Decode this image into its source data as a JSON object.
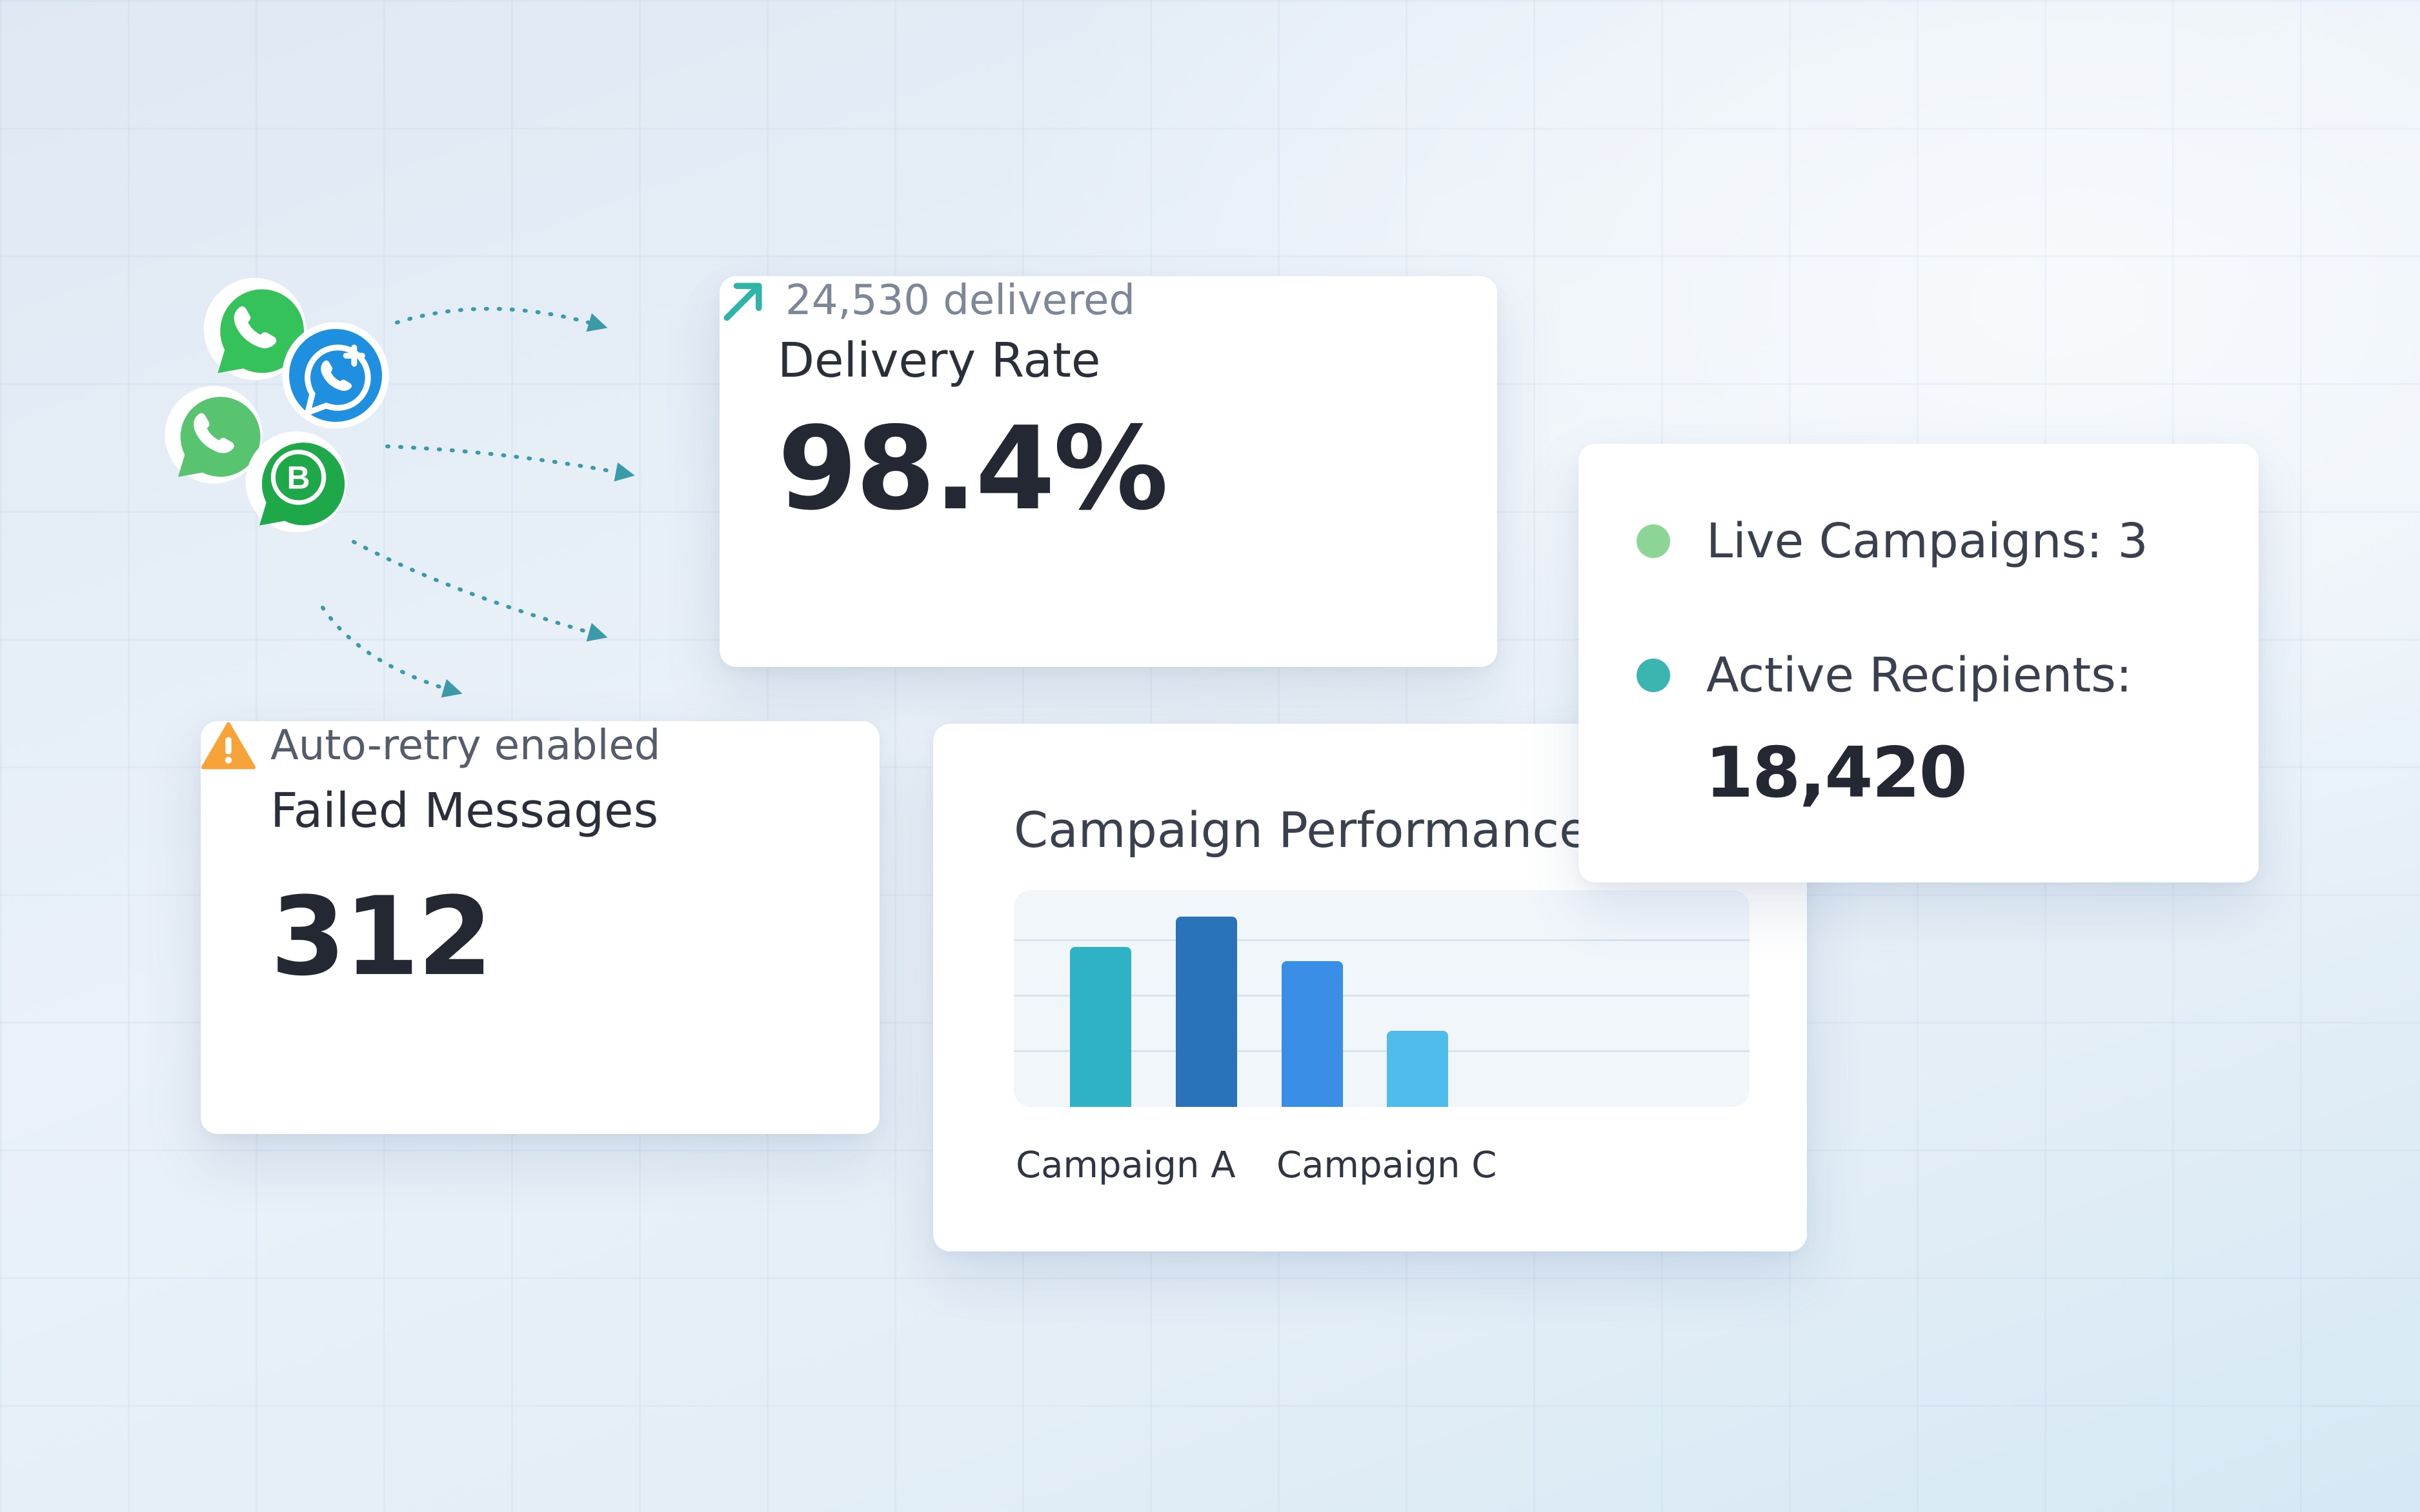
{
  "delivery_card": {
    "title": "Delivery Rate",
    "value": "98.4%",
    "subtext": "24,530 delivered",
    "trend_icon": "trend-up-arrow-icon"
  },
  "failed_card": {
    "title": "Failed Messages",
    "value": "312",
    "subtext": "Auto-retry enabled",
    "warning_icon": "warning-triangle-icon"
  },
  "campaign_card": {
    "title": "Campaign Performance"
  },
  "live_card": {
    "live_campaigns": "Live Campaigns: 3",
    "active_recipients_label": "Active Recipients:",
    "active_recipients_value": "18,420",
    "live_dot_color": "#8dd596",
    "recipients_dot_color": "#3ab5b0"
  },
  "chart_data": {
    "type": "bar",
    "title": "Campaign Performance",
    "categories": [
      "Campaign A",
      "",
      "Campaign C",
      ""
    ],
    "values": [
      80,
      95,
      73,
      38
    ],
    "ylim": [
      0,
      100
    ],
    "grid": true,
    "colors": [
      "#2fb2c5",
      "#2a73bb",
      "#3a8ee6",
      "#4fbceb"
    ]
  },
  "icons": [
    "whatsapp-icon",
    "whatsapp-add-contact-icon",
    "whatsapp-icon",
    "whatsapp-business-icon"
  ]
}
